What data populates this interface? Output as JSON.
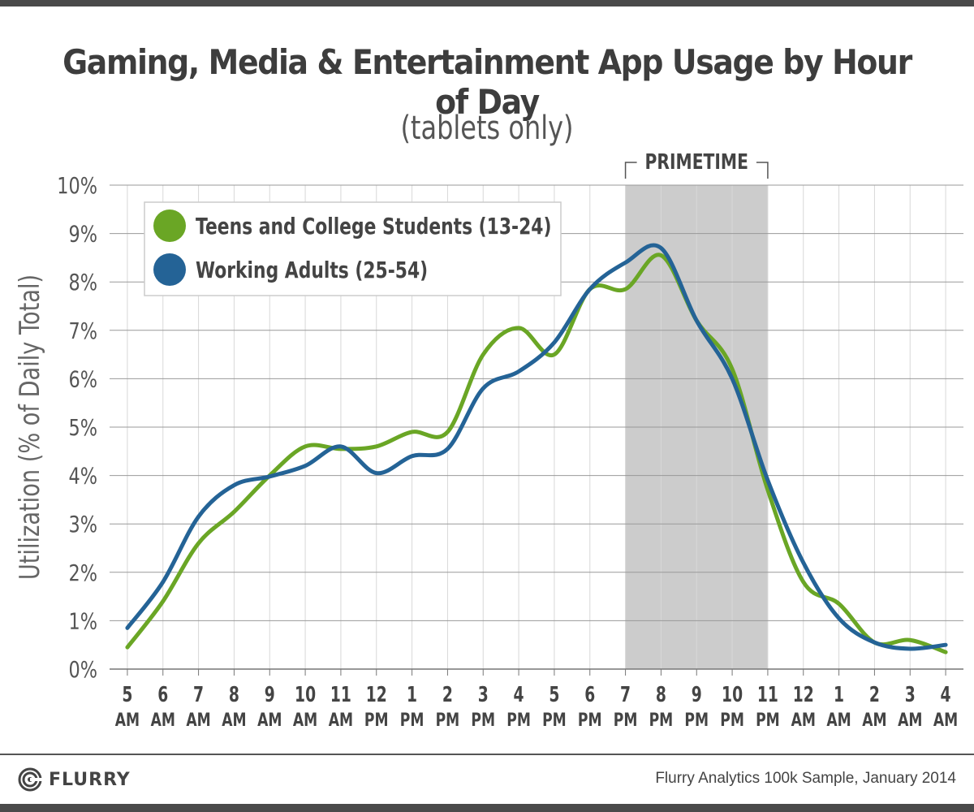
{
  "chart_data": {
    "type": "line",
    "title": "Gaming, Media & Entertainment App Usage by Hour of Day",
    "subtitle": "(tablets only)",
    "ylabel": "Utilization (% of Daily Total)",
    "xlabel": "",
    "ylim": [
      0,
      10
    ],
    "yticks": [
      "0%",
      "1%",
      "2%",
      "3%",
      "4%",
      "5%",
      "6%",
      "7%",
      "8%",
      "9%",
      "10%"
    ],
    "categories": [
      [
        "5",
        "AM"
      ],
      [
        "6",
        "AM"
      ],
      [
        "7",
        "AM"
      ],
      [
        "8",
        "AM"
      ],
      [
        "9",
        "AM"
      ],
      [
        "10",
        "AM"
      ],
      [
        "11",
        "AM"
      ],
      [
        "12",
        "PM"
      ],
      [
        "1",
        "PM"
      ],
      [
        "2",
        "PM"
      ],
      [
        "3",
        "PM"
      ],
      [
        "4",
        "PM"
      ],
      [
        "5",
        "PM"
      ],
      [
        "6",
        "PM"
      ],
      [
        "7",
        "PM"
      ],
      [
        "8",
        "PM"
      ],
      [
        "9",
        "PM"
      ],
      [
        "10",
        "PM"
      ],
      [
        "11",
        "PM"
      ],
      [
        "12",
        "AM"
      ],
      [
        "1",
        "AM"
      ],
      [
        "2",
        "AM"
      ],
      [
        "3",
        "AM"
      ],
      [
        "4",
        "AM"
      ]
    ],
    "highlight": {
      "label": "PRIMETIME",
      "from_index": 14,
      "to_index": 18,
      "color": "#cccccc"
    },
    "grid": true,
    "legend_position": "top-left",
    "series": [
      {
        "name": "Teens and College Students (13-24)",
        "color": "#6aa625",
        "values": [
          0.45,
          1.4,
          2.6,
          3.25,
          4.0,
          4.6,
          4.55,
          4.6,
          4.9,
          4.9,
          6.5,
          7.05,
          6.5,
          7.85,
          7.85,
          8.55,
          7.2,
          6.2,
          3.7,
          1.8,
          1.35,
          0.55,
          0.6,
          0.35
        ]
      },
      {
        "name": "Working Adults (25-54)",
        "color": "#246396",
        "values": [
          0.85,
          1.8,
          3.15,
          3.8,
          3.98,
          4.2,
          4.6,
          4.05,
          4.4,
          4.55,
          5.8,
          6.15,
          6.75,
          7.85,
          8.4,
          8.7,
          7.2,
          6.0,
          3.9,
          2.2,
          1.05,
          0.55,
          0.42,
          0.5
        ]
      }
    ]
  },
  "footer": {
    "logo_text": "FLURRY",
    "source": "Flurry Analytics 100k Sample, January 2014"
  }
}
